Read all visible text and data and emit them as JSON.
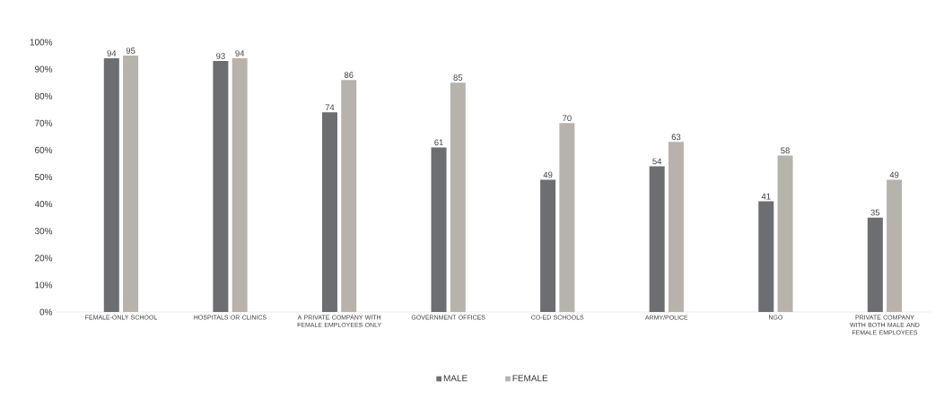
{
  "chart_data": {
    "type": "bar",
    "categories": [
      "FEMALE-ONLY SCHOOL",
      "HOSPITALS OR CLINICS",
      "A PRIVATE COMPANY WITH FEMALE EMPLOYEES ONLY",
      "GOVERNMENT OFFICES",
      "CO-ED SCHOOLS",
      "ARMY/POLICE",
      "NGO",
      "PRIVATE COMPANY WITH BOTH MALE AND FEMALE EMPLOYEES"
    ],
    "series": [
      {
        "name": "MALE",
        "color": "#6d6e71",
        "values": [
          94,
          93,
          74,
          61,
          49,
          54,
          41,
          35
        ]
      },
      {
        "name": "FEMALE",
        "color": "#b8b2ac",
        "values": [
          95,
          94,
          86,
          85,
          70,
          63,
          58,
          49
        ]
      }
    ],
    "ylim": [
      0,
      100
    ],
    "yticks": [
      {
        "value": 0,
        "label": "0%"
      },
      {
        "value": 10,
        "label": "10%"
      },
      {
        "value": 20,
        "label": "20%"
      },
      {
        "value": 30,
        "label": "30%"
      },
      {
        "value": 40,
        "label": "40%"
      },
      {
        "value": 50,
        "label": "50%"
      },
      {
        "value": 60,
        "label": "60%"
      },
      {
        "value": 70,
        "label": "70%"
      },
      {
        "value": 80,
        "label": "80%"
      },
      {
        "value": 90,
        "label": "90%"
      },
      {
        "value": 100,
        "label": "100%"
      }
    ],
    "data_labels": true,
    "legend": "bottom"
  }
}
